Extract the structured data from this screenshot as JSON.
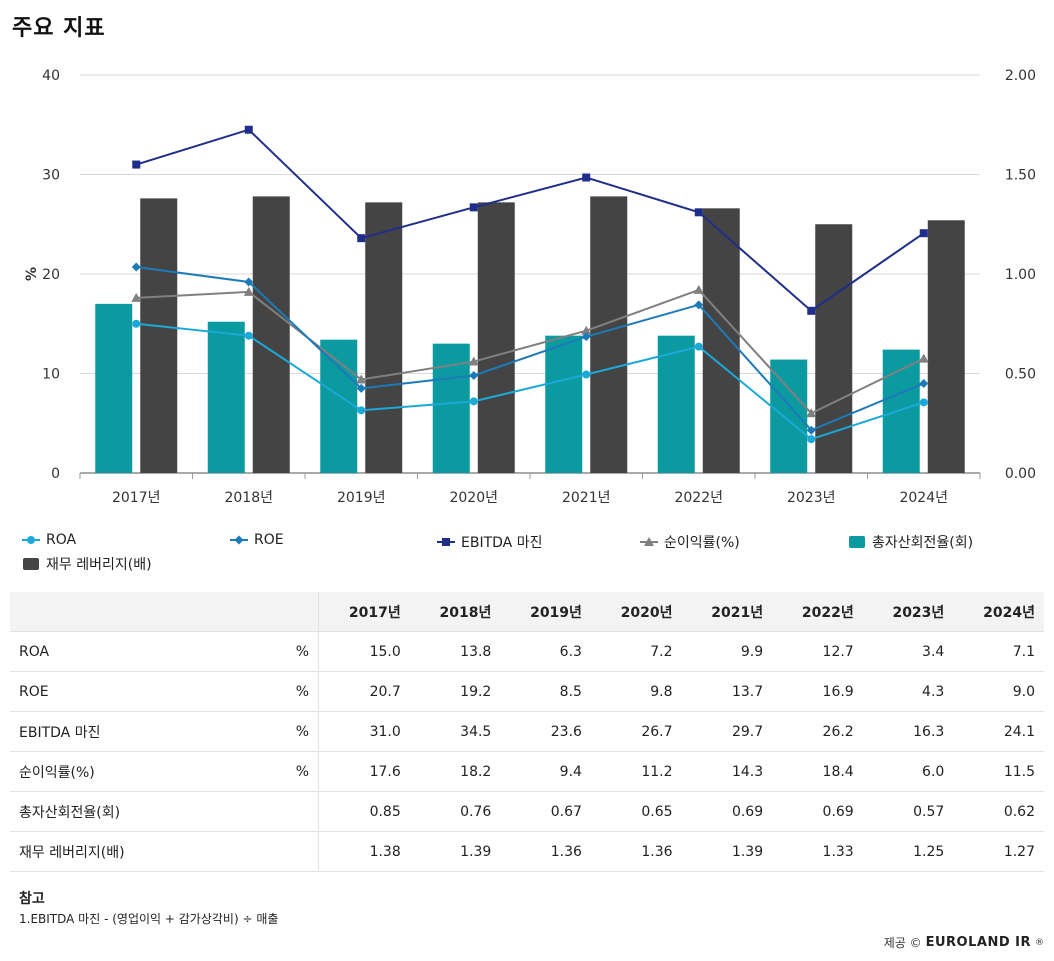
{
  "page": {
    "title": "주요 지표"
  },
  "chart_data": {
    "type": "bar",
    "categories": [
      "2017년",
      "2018년",
      "2019년",
      "2020년",
      "2021년",
      "2022년",
      "2023년",
      "2024년"
    ],
    "ylabel": "%",
    "ylim": [
      0,
      40
    ],
    "y2lim": [
      0,
      2.0
    ],
    "yticks": [
      "0",
      "10",
      "20",
      "30",
      "40"
    ],
    "y2ticks": [
      "0.00",
      "0.50",
      "1.00",
      "1.50",
      "2.00"
    ],
    "grid": true,
    "legend_position": "bottom",
    "series": [
      {
        "name": "ROA",
        "kind": "line",
        "axis": "left",
        "marker": "circle",
        "color": "#1ba9d8",
        "values": [
          15.0,
          13.8,
          6.3,
          7.2,
          9.9,
          12.7,
          3.4,
          7.1
        ]
      },
      {
        "name": "ROE",
        "kind": "line",
        "axis": "left",
        "marker": "diamond",
        "color": "#1c7ab8",
        "values": [
          20.7,
          19.2,
          8.5,
          9.8,
          13.7,
          16.9,
          4.3,
          9.0
        ]
      },
      {
        "name": "EBITDA 마진",
        "kind": "line",
        "axis": "left",
        "marker": "square",
        "color": "#1f2e8a",
        "values": [
          31.0,
          34.5,
          23.6,
          26.7,
          29.7,
          26.2,
          16.3,
          24.1
        ]
      },
      {
        "name": "순이익률(%)",
        "kind": "line",
        "axis": "left",
        "marker": "triangle",
        "color": "#808080",
        "values": [
          17.6,
          18.2,
          9.4,
          11.2,
          14.3,
          18.4,
          6.0,
          11.5
        ]
      },
      {
        "name": "총자산회전율(회)",
        "kind": "bar",
        "axis": "right",
        "color": "#0b9aa0",
        "values": [
          0.85,
          0.76,
          0.67,
          0.65,
          0.69,
          0.69,
          0.57,
          0.62
        ]
      },
      {
        "name": "재무 레버리지(배)",
        "kind": "bar",
        "axis": "right",
        "color": "#444444",
        "values": [
          1.38,
          1.39,
          1.36,
          1.36,
          1.39,
          1.33,
          1.25,
          1.27
        ]
      }
    ]
  },
  "table": {
    "headers": [
      "2017년",
      "2018년",
      "2019년",
      "2020년",
      "2021년",
      "2022년",
      "2023년",
      "2024년"
    ],
    "rows": [
      {
        "label": "ROA",
        "unit": "%",
        "values": [
          "15.0",
          "13.8",
          "6.3",
          "7.2",
          "9.9",
          "12.7",
          "3.4",
          "7.1"
        ]
      },
      {
        "label": "ROE",
        "unit": "%",
        "values": [
          "20.7",
          "19.2",
          "8.5",
          "9.8",
          "13.7",
          "16.9",
          "4.3",
          "9.0"
        ]
      },
      {
        "label": "EBITDA 마진",
        "unit": "%",
        "values": [
          "31.0",
          "34.5",
          "23.6",
          "26.7",
          "29.7",
          "26.2",
          "16.3",
          "24.1"
        ]
      },
      {
        "label": "순이익률(%)",
        "unit": "%",
        "values": [
          "17.6",
          "18.2",
          "9.4",
          "11.2",
          "14.3",
          "18.4",
          "6.0",
          "11.5"
        ]
      },
      {
        "label": "총자산회전율(회)",
        "unit": "",
        "values": [
          "0.85",
          "0.76",
          "0.67",
          "0.65",
          "0.69",
          "0.69",
          "0.57",
          "0.62"
        ]
      },
      {
        "label": "재무 레버리지(배)",
        "unit": "",
        "values": [
          "1.38",
          "1.39",
          "1.36",
          "1.36",
          "1.39",
          "1.33",
          "1.25",
          "1.27"
        ]
      }
    ]
  },
  "notes": {
    "title": "참고",
    "lines": [
      "1.EBITDA 마진 - (영업이익 + 감가상각비) ÷ 매출"
    ]
  },
  "credit": {
    "prefix": "제공 ©",
    "brand": "EUROLAND IR",
    "suffix": "®"
  }
}
